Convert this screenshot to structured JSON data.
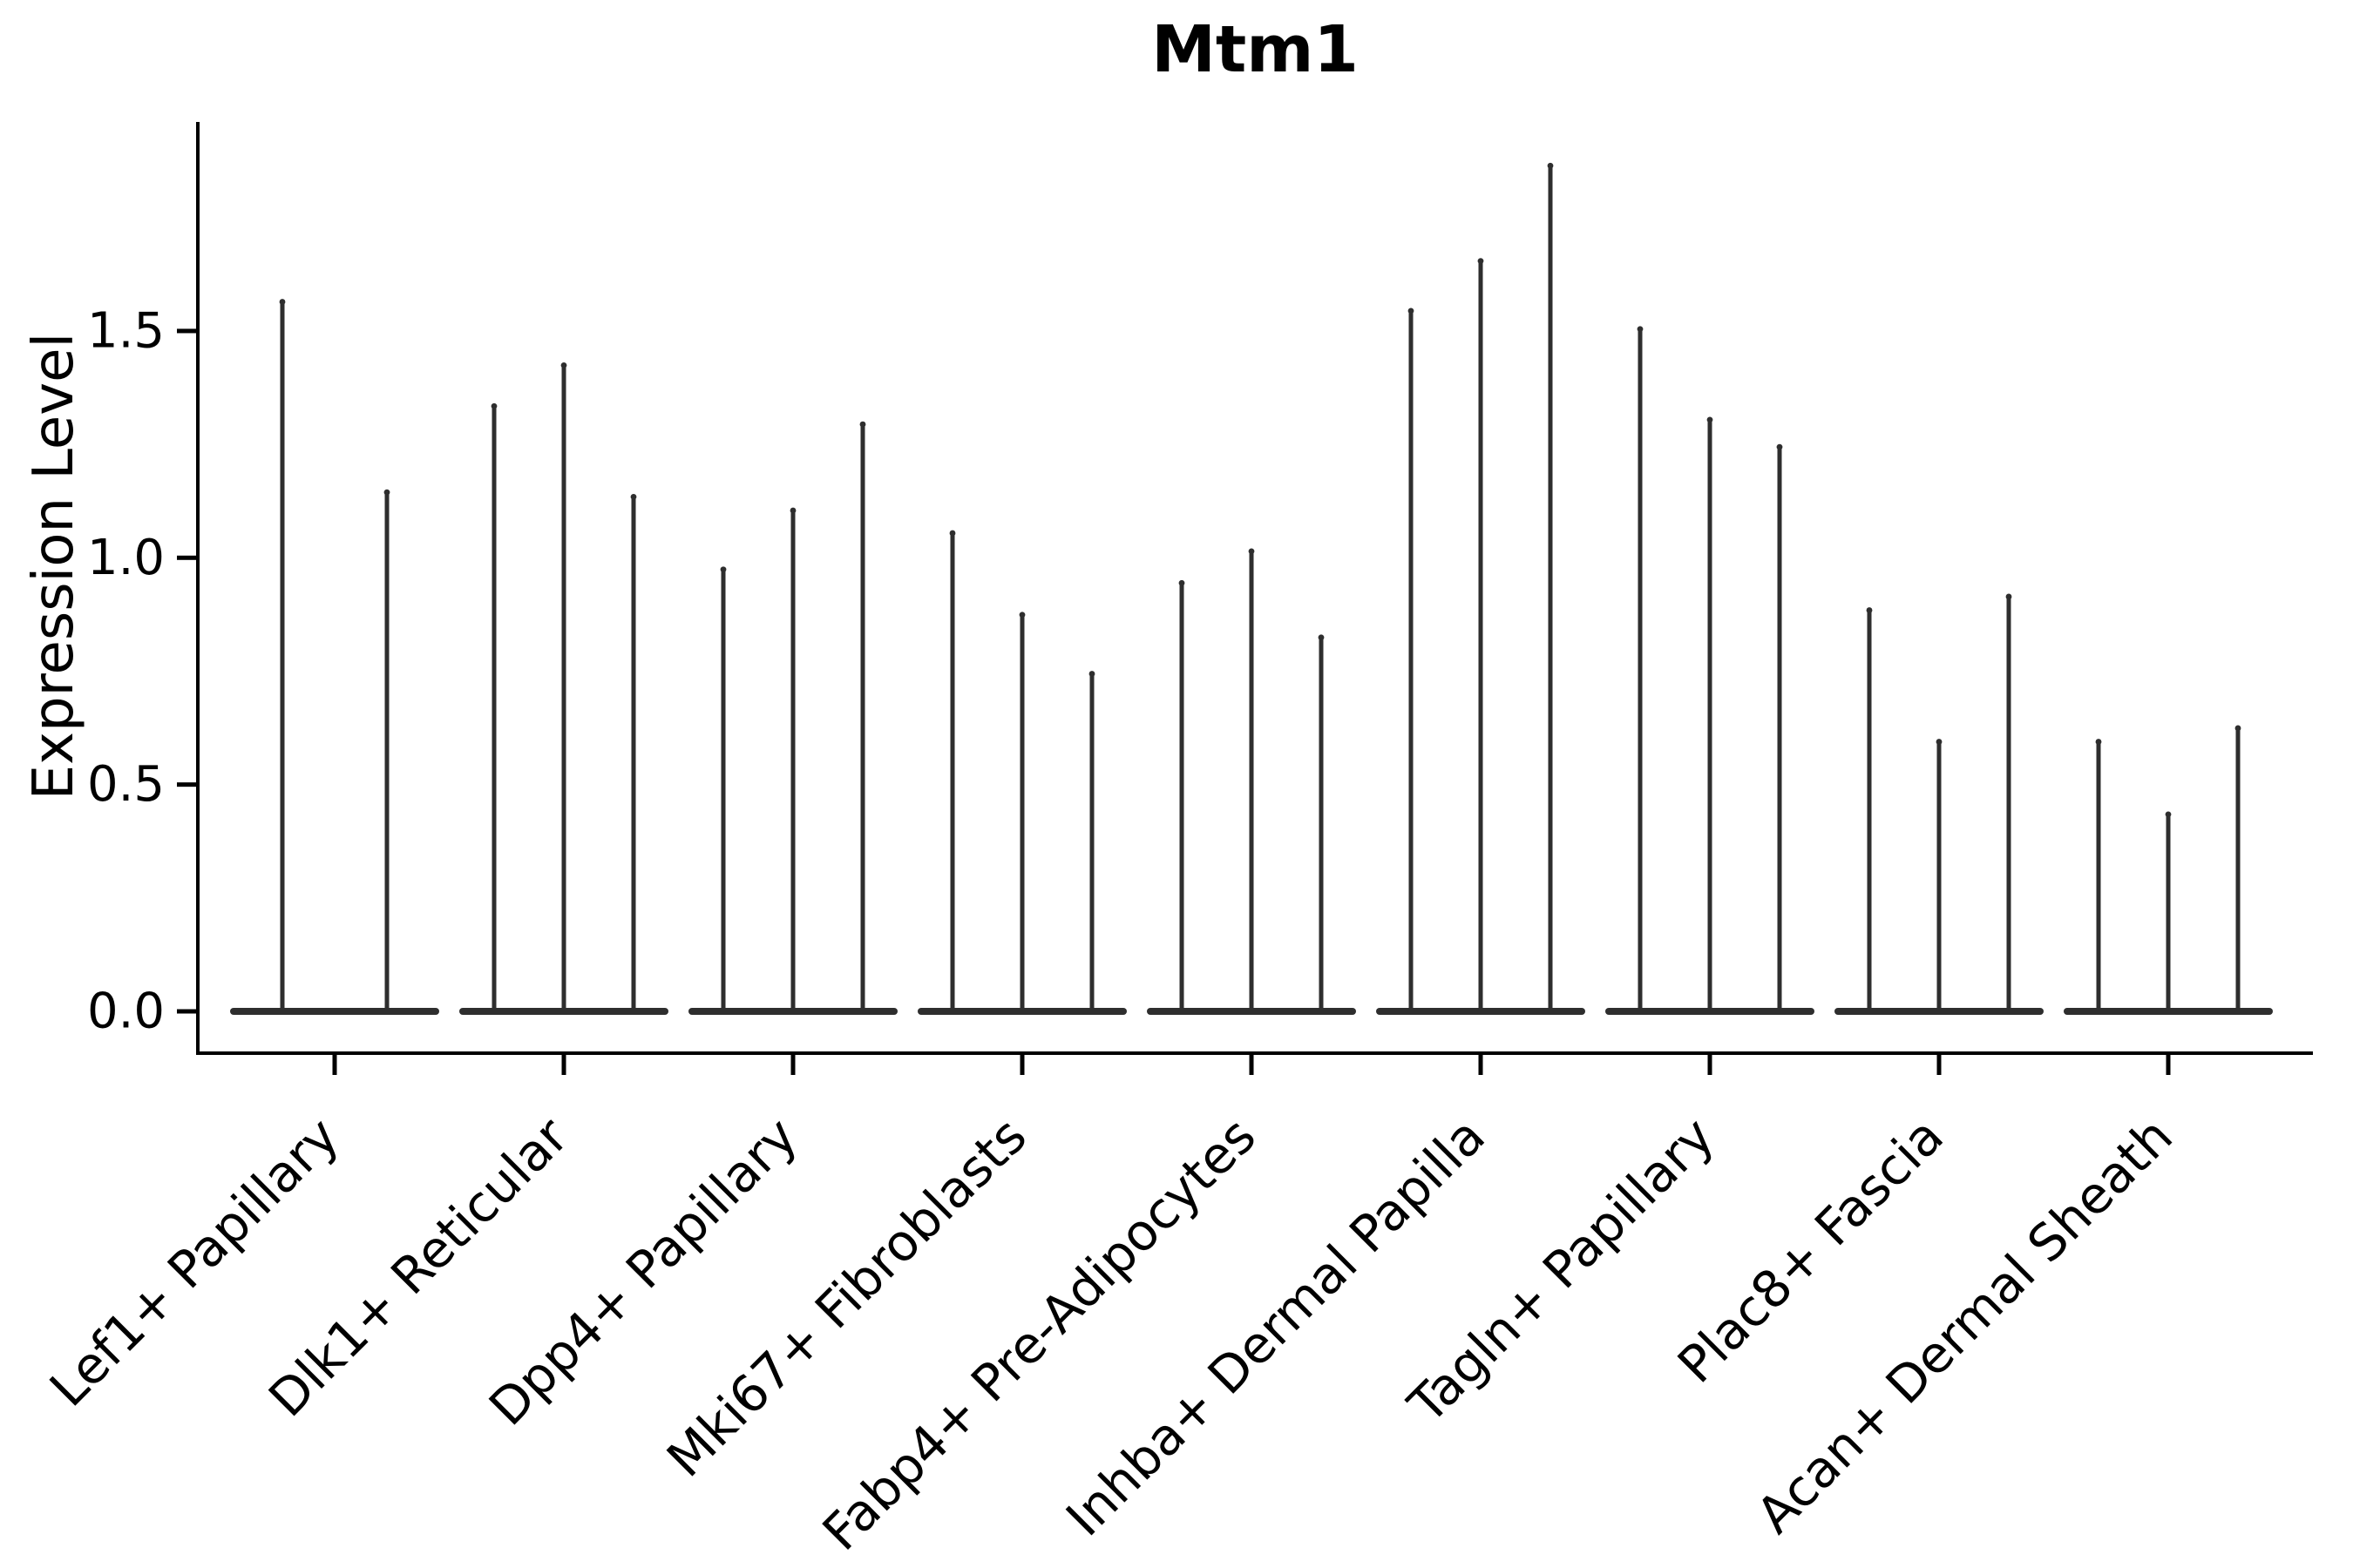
{
  "title": "Mtm1",
  "y_axis": {
    "label": "Expression Level"
  },
  "colors": {
    "background": "#ffffff",
    "violin": "#2e2e2e",
    "axis": "#000000",
    "text": "#000000"
  },
  "chart_data": {
    "type": "violin",
    "title": "Mtm1",
    "xlabel": "",
    "ylabel": "Expression Level",
    "ylim": [
      -0.09,
      1.96
    ],
    "yticks": [
      0.0,
      0.5,
      1.0,
      1.5
    ],
    "ytick_labels": [
      "0.0",
      "0.5",
      "1.0",
      "1.5"
    ],
    "grid": false,
    "legend": "none",
    "description": "Needle-shaped violins: nearly all density sits at expression 0 (flat wide base) with a thin spike rising to the maximum expression value. Groups of 2-3 violins share one category tick.",
    "categories": [
      "Lef1+ Papillary",
      "Dlk1+ Reticular",
      "Dpp4+ Papillary",
      "Mki67+ Fibroblasts",
      "Fabp4+ Pre-Adipocytes",
      "Inhba+ Dermal Papilla",
      "Tagln+ Papillary",
      "Plac8+ Fascia",
      "Acan+ Dermal Sheath"
    ],
    "groups": [
      {
        "label": "Lef1+ Papillary",
        "violin_peaks": [
          1.57,
          1.15
        ]
      },
      {
        "label": "Dlk1+ Reticular",
        "violin_peaks": [
          1.34,
          1.43,
          1.14
        ]
      },
      {
        "label": "Dpp4+ Papillary",
        "violin_peaks": [
          0.98,
          1.11,
          1.3
        ]
      },
      {
        "label": "Mki67+ Fibroblasts",
        "violin_peaks": [
          1.06,
          0.88,
          0.75
        ]
      },
      {
        "label": "Fabp4+ Pre-Adipocytes",
        "violin_peaks": [
          0.95,
          1.02,
          0.83
        ]
      },
      {
        "label": "Inhba+ Dermal Papilla",
        "violin_peaks": [
          1.55,
          1.66,
          1.87
        ]
      },
      {
        "label": "Tagln+ Papillary",
        "violin_peaks": [
          1.51,
          1.31,
          1.25
        ]
      },
      {
        "label": "Plac8+ Fascia",
        "violin_peaks": [
          0.89,
          0.6,
          0.92
        ]
      },
      {
        "label": "Acan+ Dermal Sheath",
        "violin_peaks": [
          0.6,
          0.44,
          0.63
        ]
      }
    ]
  }
}
